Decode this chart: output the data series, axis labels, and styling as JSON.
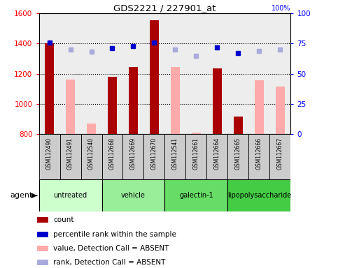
{
  "title": "GDS2221 / 227901_at",
  "samples": [
    "GSM112490",
    "GSM112491",
    "GSM112540",
    "GSM112668",
    "GSM112669",
    "GSM112670",
    "GSM112541",
    "GSM112661",
    "GSM112664",
    "GSM112665",
    "GSM112666",
    "GSM112667"
  ],
  "groups": [
    {
      "label": "untreated",
      "color": "#ccffcc",
      "indices": [
        0,
        1,
        2
      ]
    },
    {
      "label": "vehicle",
      "color": "#99ee99",
      "indices": [
        3,
        4,
        5
      ]
    },
    {
      "label": "galectin-1",
      "color": "#66dd66",
      "indices": [
        6,
        7,
        8
      ]
    },
    {
      "label": "lipopolysaccharide",
      "color": "#44cc44",
      "indices": [
        9,
        10,
        11
      ]
    }
  ],
  "count_values": [
    1400,
    null,
    null,
    1180,
    1245,
    1555,
    null,
    null,
    1235,
    915,
    null,
    null
  ],
  "absent_values": [
    null,
    1160,
    870,
    null,
    null,
    null,
    1245,
    810,
    null,
    null,
    1155,
    1115
  ],
  "rank_present": [
    76,
    null,
    null,
    71,
    73,
    76,
    null,
    null,
    72,
    67,
    null,
    null
  ],
  "rank_absent": [
    null,
    70,
    68,
    null,
    null,
    null,
    70,
    65,
    null,
    null,
    69,
    70
  ],
  "ylim_left": [
    800,
    1600
  ],
  "ylim_right": [
    0,
    100
  ],
  "yticks_left": [
    800,
    1000,
    1200,
    1400,
    1600
  ],
  "yticks_right": [
    0,
    25,
    50,
    75,
    100
  ],
  "bar_width": 0.45,
  "count_color": "#aa0000",
  "absent_bar_color": "#ffaaaa",
  "rank_present_color": "#0000cc",
  "rank_absent_color": "#aaaadd",
  "legend_items": [
    {
      "label": "count",
      "color": "#aa0000"
    },
    {
      "label": "percentile rank within the sample",
      "color": "#0000cc"
    },
    {
      "label": "value, Detection Call = ABSENT",
      "color": "#ffaaaa"
    },
    {
      "label": "rank, Detection Call = ABSENT",
      "color": "#aaaadd"
    }
  ]
}
